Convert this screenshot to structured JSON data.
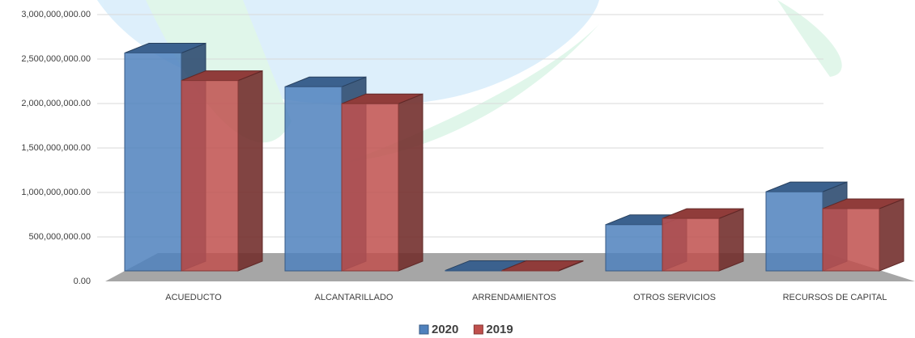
{
  "chart_data": {
    "type": "bar3d",
    "categories": [
      "ACUEDUCTO",
      "ALCANTARILLADO",
      "ARRENDAMIENTOS",
      "OTROS SERVICIOS",
      "RECURSOS DE CAPITAL"
    ],
    "series": [
      {
        "name": "2020",
        "color": "#4f81bd",
        "values": [
          2450000000,
          2070000000,
          5000000,
          520000000,
          890000000
        ]
      },
      {
        "name": "2019",
        "color": "#c0504d",
        "values": [
          2140000000,
          1880000000,
          5000000,
          590000000,
          700000000
        ]
      }
    ],
    "ylim": [
      0,
      3000000000
    ],
    "yticks": [
      {
        "value": 0,
        "label": "0.00"
      },
      {
        "value": 500000000,
        "label": "500,000,000.00"
      },
      {
        "value": 1000000000,
        "label": "1,000,000,000.00"
      },
      {
        "value": 1500000000,
        "label": "1,500,000,000.00"
      },
      {
        "value": 2000000000,
        "label": "2,000,000,000.00"
      },
      {
        "value": 2500000000,
        "label": "2,500,000,000.00"
      },
      {
        "value": 3000000000,
        "label": "3,000,000,000.00"
      }
    ],
    "grid": true
  }
}
